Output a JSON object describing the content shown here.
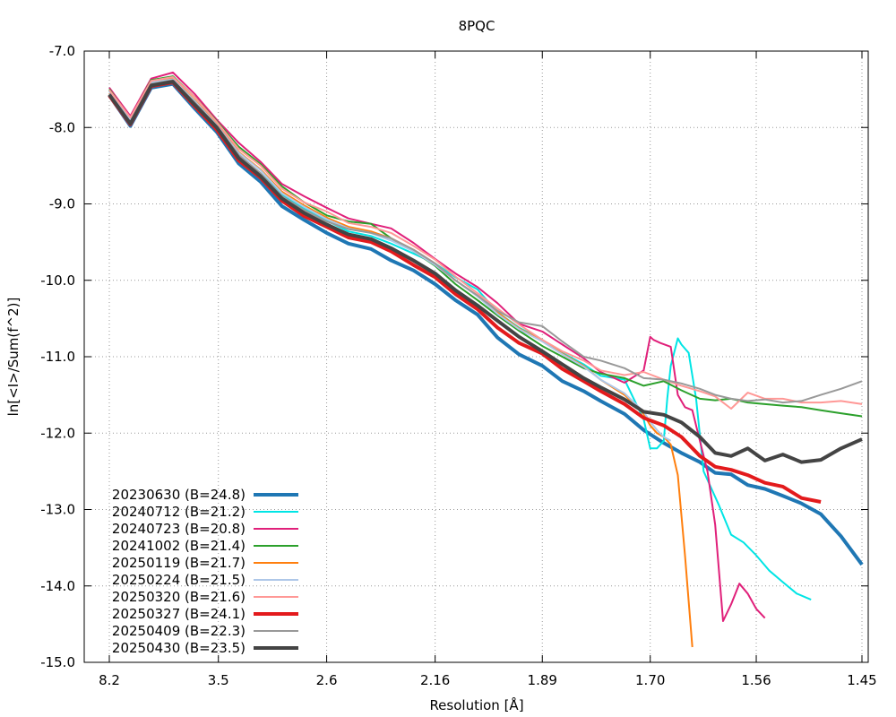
{
  "chart_data": {
    "type": "line",
    "title": "8PQC",
    "xlabel": "Resolution [Å]",
    "ylabel": "ln[<I>/Sum(f^2)]",
    "x_scale": "reciprocal (1/d^2)",
    "x_ticks": [
      "8.2",
      "3.5",
      "2.6",
      "2.16",
      "1.89",
      "1.70",
      "1.56",
      "1.45"
    ],
    "y_ticks": [
      "-7.0",
      "-8.0",
      "-9.0",
      "-10.0",
      "-11.0",
      "-12.0",
      "-13.0",
      "-14.0",
      "-15.0"
    ],
    "ylim": [
      -15.0,
      -7.0
    ],
    "grid": true,
    "legend_position": "bottom-left",
    "series": [
      {
        "name": "20230630 (B=24.8)",
        "color": "#1f77b4",
        "width": 4,
        "x": [
          8.2,
          6.0,
          4.97,
          4.31,
          3.86,
          3.52,
          3.26,
          3.05,
          2.88,
          2.73,
          2.6,
          2.49,
          2.39,
          2.31,
          2.23,
          2.16,
          2.1,
          2.04,
          1.99,
          1.94,
          1.89,
          1.85,
          1.81,
          1.78,
          1.74,
          1.71,
          1.68,
          1.655,
          1.63,
          1.61,
          1.59,
          1.57,
          1.55,
          1.53,
          1.51,
          1.49,
          1.47,
          1.45
        ],
        "y": [
          -7.58,
          -7.98,
          -7.48,
          -7.43,
          -7.75,
          -8.06,
          -8.47,
          -8.71,
          -9.03,
          -9.21,
          -9.38,
          -9.52,
          -9.59,
          -9.74,
          -9.87,
          -10.05,
          -10.26,
          -10.45,
          -10.75,
          -10.97,
          -11.12,
          -11.32,
          -11.45,
          -11.58,
          -11.75,
          -11.96,
          -12.13,
          -12.26,
          -12.38,
          -12.52,
          -12.54,
          -12.68,
          -12.73,
          -12.82,
          -12.92,
          -13.06,
          -13.35,
          -13.72
        ]
      },
      {
        "name": "20240712 (B=21.2)",
        "color": "#00e5e5",
        "width": 2,
        "x": [
          8.2,
          6.0,
          4.97,
          4.31,
          3.86,
          3.52,
          3.26,
          3.05,
          2.88,
          2.73,
          2.6,
          2.49,
          2.39,
          2.31,
          2.23,
          2.16,
          2.1,
          2.04,
          1.99,
          1.94,
          1.89,
          1.85,
          1.81,
          1.78,
          1.74,
          1.71,
          1.7,
          1.69,
          1.68,
          1.675,
          1.67,
          1.66,
          1.655,
          1.645,
          1.635,
          1.625,
          1.605,
          1.59,
          1.575,
          1.56,
          1.545,
          1.53,
          1.515,
          1.5
        ],
        "y": [
          -7.52,
          -7.92,
          -7.42,
          -7.38,
          -7.68,
          -8.0,
          -8.38,
          -8.6,
          -8.88,
          -9.06,
          -9.22,
          -9.36,
          -9.42,
          -9.52,
          -9.65,
          -9.78,
          -9.96,
          -10.12,
          -10.42,
          -10.62,
          -10.78,
          -10.95,
          -11.1,
          -11.25,
          -11.3,
          -11.82,
          -12.2,
          -12.2,
          -12.1,
          -11.55,
          -11.12,
          -10.76,
          -10.84,
          -10.95,
          -11.55,
          -12.5,
          -12.95,
          -13.33,
          -13.43,
          -13.6,
          -13.8,
          -13.95,
          -14.1,
          -14.18
        ]
      },
      {
        "name": "20240723 (B=20.8)",
        "color": "#e0207a",
        "width": 2,
        "x": [
          8.2,
          6.0,
          4.97,
          4.31,
          3.86,
          3.52,
          3.26,
          3.05,
          2.88,
          2.73,
          2.6,
          2.49,
          2.39,
          2.31,
          2.23,
          2.16,
          2.1,
          2.04,
          1.99,
          1.94,
          1.89,
          1.85,
          1.81,
          1.78,
          1.74,
          1.71,
          1.7,
          1.695,
          1.685,
          1.67,
          1.66,
          1.65,
          1.64,
          1.63,
          1.62,
          1.61,
          1.6,
          1.59,
          1.58,
          1.57,
          1.56,
          1.55
        ],
        "y": [
          -7.48,
          -7.85,
          -7.36,
          -7.28,
          -7.56,
          -7.9,
          -8.2,
          -8.45,
          -8.74,
          -8.9,
          -9.05,
          -9.19,
          -9.26,
          -9.32,
          -9.51,
          -9.72,
          -9.91,
          -10.09,
          -10.3,
          -10.57,
          -10.67,
          -10.84,
          -11.02,
          -11.2,
          -11.34,
          -11.18,
          -10.74,
          -10.78,
          -10.82,
          -10.87,
          -11.5,
          -11.66,
          -11.7,
          -12.1,
          -12.5,
          -13.2,
          -14.46,
          -14.24,
          -13.97,
          -14.1,
          -14.3,
          -14.42
        ]
      },
      {
        "name": "20241002 (B=21.4)",
        "color": "#2ca02c",
        "width": 2,
        "x": [
          8.2,
          6.0,
          4.97,
          4.31,
          3.86,
          3.52,
          3.26,
          3.05,
          2.88,
          2.73,
          2.6,
          2.49,
          2.39,
          2.31,
          2.23,
          2.16,
          2.1,
          2.04,
          1.99,
          1.94,
          1.89,
          1.85,
          1.81,
          1.78,
          1.74,
          1.71,
          1.68,
          1.655,
          1.63,
          1.61,
          1.59,
          1.57,
          1.55,
          1.53,
          1.51,
          1.49,
          1.47,
          1.45
        ],
        "y": [
          -7.5,
          -7.88,
          -7.38,
          -7.33,
          -7.6,
          -7.92,
          -8.25,
          -8.48,
          -8.77,
          -8.98,
          -9.15,
          -9.23,
          -9.26,
          -9.45,
          -9.62,
          -9.81,
          -10.05,
          -10.26,
          -10.46,
          -10.66,
          -10.86,
          -11.0,
          -11.15,
          -11.22,
          -11.28,
          -11.38,
          -11.32,
          -11.44,
          -11.55,
          -11.57,
          -11.55,
          -11.6,
          -11.62,
          -11.64,
          -11.66,
          -11.7,
          -11.74,
          -11.78
        ]
      },
      {
        "name": "20250119 (B=21.7)",
        "color": "#ff7f0e",
        "width": 2,
        "x": [
          8.2,
          6.0,
          4.97,
          4.31,
          3.86,
          3.52,
          3.26,
          3.05,
          2.88,
          2.73,
          2.6,
          2.49,
          2.39,
          2.31,
          2.23,
          2.16,
          2.1,
          2.04,
          1.99,
          1.94,
          1.89,
          1.85,
          1.81,
          1.78,
          1.74,
          1.71,
          1.7,
          1.69,
          1.68,
          1.67,
          1.66,
          1.65,
          1.64
        ],
        "y": [
          -7.55,
          -7.9,
          -7.4,
          -7.36,
          -7.64,
          -7.96,
          -8.32,
          -8.55,
          -8.84,
          -9.02,
          -9.18,
          -9.3,
          -9.36,
          -9.45,
          -9.6,
          -9.78,
          -10.0,
          -10.2,
          -10.42,
          -10.63,
          -10.79,
          -10.96,
          -11.12,
          -11.3,
          -11.5,
          -11.75,
          -11.9,
          -12.0,
          -12.05,
          -12.15,
          -12.55,
          -13.6,
          -14.8
        ]
      },
      {
        "name": "20250224 (B=21.5)",
        "color": "#aec7e8",
        "width": 2,
        "x": [
          8.2,
          6.0,
          4.97,
          4.31,
          3.86,
          3.52,
          3.26,
          3.05,
          2.88,
          2.73,
          2.6,
          2.49,
          2.39,
          2.31,
          2.23,
          2.16,
          2.1,
          2.04,
          1.99,
          1.94,
          1.89,
          1.85,
          1.81,
          1.78,
          1.74,
          1.71,
          1.7,
          1.69,
          1.68,
          1.67
        ],
        "y": [
          -7.53,
          -7.9,
          -7.41,
          -7.37,
          -7.65,
          -7.97,
          -8.33,
          -8.56,
          -8.86,
          -9.04,
          -9.2,
          -9.32,
          -9.38,
          -9.48,
          -9.62,
          -9.8,
          -10.0,
          -10.21,
          -10.44,
          -10.64,
          -10.8,
          -10.97,
          -11.13,
          -11.3,
          -11.48,
          -11.72,
          -11.85,
          -11.96,
          -12.05,
          -12.1
        ]
      },
      {
        "name": "20250320 (B=21.6)",
        "color": "#ff9896",
        "width": 2,
        "x": [
          8.2,
          6.0,
          4.97,
          4.31,
          3.86,
          3.52,
          3.26,
          3.05,
          2.88,
          2.73,
          2.6,
          2.49,
          2.39,
          2.31,
          2.23,
          2.16,
          2.1,
          2.04,
          1.99,
          1.94,
          1.89,
          1.85,
          1.81,
          1.78,
          1.74,
          1.71,
          1.68,
          1.655,
          1.63,
          1.61,
          1.59,
          1.57,
          1.55,
          1.53,
          1.51,
          1.49,
          1.47,
          1.45
        ],
        "y": [
          -7.51,
          -7.87,
          -7.39,
          -7.34,
          -7.6,
          -7.93,
          -8.28,
          -8.5,
          -8.8,
          -8.98,
          -9.1,
          -9.25,
          -9.3,
          -9.38,
          -9.55,
          -9.73,
          -9.95,
          -10.17,
          -10.37,
          -10.58,
          -10.78,
          -10.93,
          -11.05,
          -11.18,
          -11.24,
          -11.2,
          -11.3,
          -11.38,
          -11.45,
          -11.52,
          -11.68,
          -11.47,
          -11.55,
          -11.55,
          -11.6,
          -11.6,
          -11.58,
          -11.62
        ]
      },
      {
        "name": "20250327 (B=24.1)",
        "color": "#e31a1c",
        "width": 4,
        "x": [
          8.2,
          6.0,
          4.97,
          4.31,
          3.86,
          3.52,
          3.26,
          3.05,
          2.88,
          2.73,
          2.6,
          2.49,
          2.39,
          2.31,
          2.23,
          2.16,
          2.1,
          2.04,
          1.99,
          1.94,
          1.89,
          1.85,
          1.81,
          1.78,
          1.74,
          1.71,
          1.68,
          1.655,
          1.63,
          1.61,
          1.59,
          1.57,
          1.55,
          1.53,
          1.51,
          1.49
        ],
        "y": [
          -7.58,
          -7.96,
          -7.46,
          -7.41,
          -7.72,
          -8.03,
          -8.43,
          -8.66,
          -8.96,
          -9.16,
          -9.3,
          -9.44,
          -9.5,
          -9.62,
          -9.8,
          -9.96,
          -10.18,
          -10.38,
          -10.62,
          -10.82,
          -10.96,
          -11.16,
          -11.32,
          -11.45,
          -11.62,
          -11.8,
          -11.9,
          -12.05,
          -12.3,
          -12.44,
          -12.48,
          -12.55,
          -12.65,
          -12.7,
          -12.85,
          -12.9
        ]
      },
      {
        "name": "20250409 (B=22.3)",
        "color": "#999999",
        "width": 2,
        "x": [
          8.2,
          6.0,
          4.97,
          4.31,
          3.86,
          3.52,
          3.26,
          3.05,
          2.88,
          2.73,
          2.6,
          2.49,
          2.39,
          2.31,
          2.23,
          2.16,
          2.1,
          2.04,
          1.99,
          1.94,
          1.89,
          1.85,
          1.81,
          1.78,
          1.74,
          1.71,
          1.68,
          1.655,
          1.63,
          1.61,
          1.59,
          1.57,
          1.55,
          1.53,
          1.51,
          1.49,
          1.47,
          1.45
        ],
        "y": [
          -7.56,
          -7.93,
          -7.43,
          -7.38,
          -7.67,
          -7.98,
          -8.36,
          -8.6,
          -8.9,
          -9.08,
          -9.23,
          -9.33,
          -9.38,
          -9.45,
          -9.6,
          -9.78,
          -10.0,
          -10.2,
          -10.4,
          -10.55,
          -10.6,
          -10.8,
          -11.0,
          -11.05,
          -11.15,
          -11.28,
          -11.3,
          -11.35,
          -11.42,
          -11.5,
          -11.55,
          -11.58,
          -11.56,
          -11.6,
          -11.58,
          -11.5,
          -11.42,
          -11.32
        ]
      },
      {
        "name": "20250430 (B=23.5)",
        "color": "#444444",
        "width": 4,
        "x": [
          8.2,
          6.0,
          4.97,
          4.31,
          3.86,
          3.52,
          3.26,
          3.05,
          2.88,
          2.73,
          2.6,
          2.49,
          2.39,
          2.31,
          2.23,
          2.16,
          2.1,
          2.04,
          1.99,
          1.94,
          1.89,
          1.85,
          1.81,
          1.78,
          1.74,
          1.71,
          1.68,
          1.655,
          1.63,
          1.61,
          1.59,
          1.57,
          1.55,
          1.53,
          1.51,
          1.49,
          1.47,
          1.45
        ],
        "y": [
          -7.57,
          -7.95,
          -7.45,
          -7.4,
          -7.7,
          -8.0,
          -8.4,
          -8.64,
          -8.93,
          -9.12,
          -9.27,
          -9.4,
          -9.46,
          -9.58,
          -9.74,
          -9.91,
          -10.13,
          -10.33,
          -10.53,
          -10.74,
          -10.93,
          -11.1,
          -11.28,
          -11.4,
          -11.56,
          -11.72,
          -11.76,
          -11.86,
          -12.05,
          -12.26,
          -12.3,
          -12.2,
          -12.36,
          -12.28,
          -12.38,
          -12.35,
          -12.2,
          -12.08
        ]
      }
    ]
  }
}
